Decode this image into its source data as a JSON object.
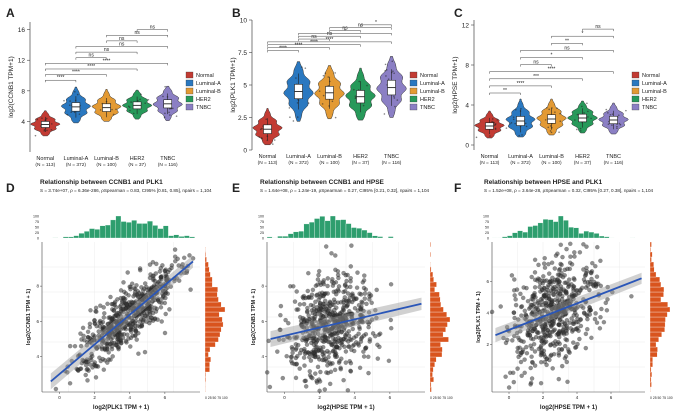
{
  "colors": {
    "normal": "#c23b33",
    "luminalA": "#2a78c0",
    "luminalB": "#e39a34",
    "her2": "#27995a",
    "tnbc": "#8b7fc4",
    "histogram_top": "#2e9e6e",
    "histogram_side": "#d9541e",
    "points": "#333333",
    "fit_line": "#2a56b8"
  },
  "legend": {
    "entries": [
      "Normal",
      "Luminal-A",
      "Luminal-B",
      "HER2",
      "TNBC"
    ]
  },
  "chart_data": [
    {
      "panel": "A",
      "type": "violin",
      "ylabel": "log2(CCNB1 TPM+1)",
      "ylim": [
        0,
        17
      ],
      "yticks": [
        4,
        8,
        12,
        16
      ],
      "categories": [
        "Normal",
        "Luminal-A",
        "Luminal-B",
        "HER2",
        "TNBC"
      ],
      "counts": [
        "(N = 113)",
        "(N = 372)",
        "(N = 100)",
        "(N = 37)",
        "(N = 116)"
      ],
      "medians": [
        3.6,
        5.9,
        5.8,
        6.1,
        6.3
      ],
      "spread": [
        [
          2.1,
          5.4
        ],
        [
          3.8,
          8.5
        ],
        [
          4.0,
          8.2
        ],
        [
          4.3,
          8.1
        ],
        [
          4.1,
          8.6
        ]
      ],
      "comparisons": [
        {
          "from": 0,
          "to": 1,
          "label": "****"
        },
        {
          "from": 0,
          "to": 2,
          "label": "****"
        },
        {
          "from": 0,
          "to": 3,
          "label": "****"
        },
        {
          "from": 0,
          "to": 4,
          "label": "****"
        },
        {
          "from": 1,
          "to": 2,
          "label": "ns"
        },
        {
          "from": 1,
          "to": 3,
          "label": "ns"
        },
        {
          "from": 1,
          "to": 4,
          "label": "ns"
        },
        {
          "from": 2,
          "to": 3,
          "label": "ns"
        },
        {
          "from": 2,
          "to": 4,
          "label": "ns"
        },
        {
          "from": 3,
          "to": 4,
          "label": "ns"
        }
      ]
    },
    {
      "panel": "B",
      "type": "violin",
      "ylabel": "log2(PLK1 TPM+1)",
      "ylim": [
        0,
        10
      ],
      "yticks": [
        0,
        2.5,
        5,
        7.5,
        10
      ],
      "categories": [
        "Normal",
        "Luminal-A",
        "Luminal-B",
        "HER2",
        "TNBC"
      ],
      "counts": [
        "(N = 113)",
        "(N = 372)",
        "(N = 100)",
        "(N = 37)",
        "(N = 116)"
      ],
      "medians": [
        1.6,
        4.5,
        4.4,
        4.1,
        4.8
      ],
      "spread": [
        [
          0.4,
          3.2
        ],
        [
          2.2,
          6.8
        ],
        [
          2.4,
          6.5
        ],
        [
          2.3,
          6.3
        ],
        [
          2.5,
          7.2
        ]
      ],
      "comparisons": [
        {
          "from": 0,
          "to": 1,
          "label": "****"
        },
        {
          "from": 0,
          "to": 2,
          "label": "****"
        },
        {
          "from": 0,
          "to": 3,
          "label": "****"
        },
        {
          "from": 0,
          "to": 4,
          "label": "****"
        },
        {
          "from": 1,
          "to": 2,
          "label": "ns"
        },
        {
          "from": 1,
          "to": 3,
          "label": "ns"
        },
        {
          "from": 1,
          "to": 4,
          "label": "*"
        },
        {
          "from": 2,
          "to": 3,
          "label": "ns"
        },
        {
          "from": 2,
          "to": 4,
          "label": "ns"
        },
        {
          "from": 3,
          "to": 4,
          "label": "*"
        }
      ]
    },
    {
      "panel": "C",
      "type": "violin",
      "ylabel": "log2(HPSE TPM+1)",
      "ylim": [
        -0.5,
        12.5
      ],
      "yticks": [
        0,
        4,
        8,
        12
      ],
      "categories": [
        "Normal",
        "Luminal-A",
        "Luminal-B",
        "HER2",
        "TNBC"
      ],
      "counts": [
        "(N = 113)",
        "(N = 372)",
        "(N = 100)",
        "(N = 37)",
        "(N = 116)"
      ],
      "medians": [
        1.9,
        2.4,
        2.6,
        2.7,
        2.5
      ],
      "spread": [
        [
          0.7,
          3.4
        ],
        [
          0.8,
          4.6
        ],
        [
          1.0,
          4.6
        ],
        [
          1.2,
          4.4
        ],
        [
          1.1,
          4.2
        ]
      ],
      "comparisons": [
        {
          "from": 0,
          "to": 1,
          "label": "**"
        },
        {
          "from": 0,
          "to": 2,
          "label": "****"
        },
        {
          "from": 0,
          "to": 3,
          "label": "***"
        },
        {
          "from": 0,
          "to": 4,
          "label": "****"
        },
        {
          "from": 1,
          "to": 2,
          "label": "ns"
        },
        {
          "from": 1,
          "to": 3,
          "label": "*"
        },
        {
          "from": 1,
          "to": 4,
          "label": "ns"
        },
        {
          "from": 2,
          "to": 3,
          "label": "**"
        },
        {
          "from": 2,
          "to": 4,
          "label": "*"
        },
        {
          "from": 3,
          "to": 4,
          "label": "ns"
        }
      ]
    },
    {
      "panel": "D",
      "type": "scatter",
      "title": "Relationship between CCNB1 and PLK1",
      "stats": "S = 3.74e+07, ρ = 6.36e-286, ρSpearman = 0.83, CI95% [0.81, 0.85], npairs = 1,104",
      "xlabel": "log2(PLK1 TPM + 1)",
      "ylabel": "log2(CCNB1 TPM + 1)",
      "xticks": [
        "0",
        "2",
        "4",
        "6"
      ],
      "yticks": [
        "4",
        "6",
        "8"
      ],
      "side_hist_ticks": "0 25 50 75 100",
      "top_hist_ticks": [
        "100",
        "75",
        "50",
        "25",
        "0"
      ],
      "xlim": [
        -1,
        8
      ],
      "ylim": [
        2,
        10.5
      ],
      "fit": [
        [
          -0.5,
          2.6
        ],
        [
          7.6,
          9.4
        ]
      ],
      "x_center": 3.8,
      "x_sd": 1.5,
      "slope": 0.84,
      "noise": 0.85
    },
    {
      "panel": "E",
      "type": "scatter",
      "title": "Relationship between CCNB1 and HPSE",
      "stats": "S = 1.64e+08, ρ = 1.24e-19, ρSpearman = 0.27, CI95% [0.21, 0.32], npairs = 1,104",
      "xlabel": "log2(HPSE TPM + 1)",
      "ylabel": "log2(CCNB1 TPM + 1)",
      "xticks": [
        "0",
        "2",
        "4",
        "6"
      ],
      "yticks": [
        "4",
        "6",
        "8"
      ],
      "side_hist_ticks": "0 25 50 75 100",
      "top_hist_ticks": [
        "100",
        "75",
        "50",
        "25",
        "0"
      ],
      "xlim": [
        -1,
        8
      ],
      "ylim": [
        2,
        10.5
      ],
      "fit": [
        [
          -0.8,
          5.0
        ],
        [
          7.8,
          7.0
        ]
      ],
      "x_center": 2.6,
      "x_sd": 1.3,
      "slope": 0.23,
      "noise": 1.35
    },
    {
      "panel": "F",
      "type": "scatter",
      "title": "Relationship between HPSE and PLK1",
      "stats": "S = 1.52e+08, ρ = 3.64e-28, ρSpearman = 0.32, CI95% [0.27, 0.38], npairs = 1,104",
      "xlabel": "log2(HPSE TPM + 1)",
      "ylabel": "log2(PLK1 TPM + 1)",
      "xticks": [
        "0",
        "2",
        "4",
        "6"
      ],
      "yticks": [
        "2",
        "4",
        "6"
      ],
      "side_hist_ticks": "0 25 50 75 100",
      "top_hist_ticks": [
        "100",
        "75",
        "50",
        "25",
        "0"
      ],
      "xlim": [
        -1,
        8
      ],
      "ylim": [
        -1,
        8.5
      ],
      "fit": [
        [
          -0.8,
          2.6
        ],
        [
          7.8,
          6.2
        ]
      ],
      "x_center": 2.6,
      "x_sd": 1.3,
      "slope": 0.42,
      "noise": 1.5
    }
  ]
}
